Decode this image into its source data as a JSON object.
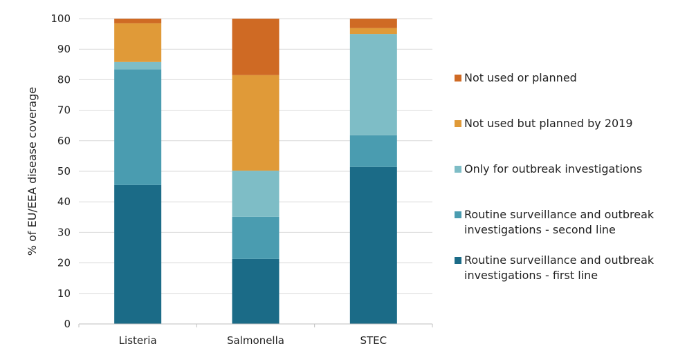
{
  "chart_data": {
    "type": "bar",
    "stacked": true,
    "categories": [
      "Listeria",
      "Salmonella",
      "STEC"
    ],
    "ylabel": "% of EU/EEA disease coverage",
    "xlabel": "",
    "ylim": [
      0,
      100
    ],
    "yticks": [
      0,
      10,
      20,
      30,
      40,
      50,
      60,
      70,
      80,
      90,
      100
    ],
    "grid": true,
    "legend_position": "right",
    "series": [
      {
        "name": "Routine surveillance and outbreak investigations - first line",
        "color": "#1b6b87",
        "values": [
          45.5,
          21.3,
          51.4
        ]
      },
      {
        "name": "Routine surveillance and outbreak investigations - second line",
        "color": "#4a9cb0",
        "values": [
          37.9,
          13.8,
          10.4
        ]
      },
      {
        "name": "Only for outbreak investigations",
        "color": "#7ebdc6",
        "values": [
          2.4,
          15.1,
          33.2
        ]
      },
      {
        "name": "Not used but planned by 2019",
        "color": "#e09a38",
        "values": [
          12.7,
          31.3,
          1.9
        ]
      },
      {
        "name": "Not used or planned",
        "color": "#cf6a24",
        "values": [
          1.5,
          18.5,
          3.1
        ]
      }
    ],
    "legend": [
      {
        "lines": [
          "Not used or planned"
        ],
        "color": "#cf6a24"
      },
      {
        "lines": [
          "Not used but planned by 2019"
        ],
        "color": "#e09a38"
      },
      {
        "lines": [
          "Only for outbreak investigations"
        ],
        "color": "#7ebdc6"
      },
      {
        "lines": [
          "Routine surveillance and outbreak",
          "investigations - second line"
        ],
        "color": "#4a9cb0"
      },
      {
        "lines": [
          "Routine surveillance and outbreak",
          "investigations - first line"
        ],
        "color": "#1b6b87"
      }
    ]
  }
}
